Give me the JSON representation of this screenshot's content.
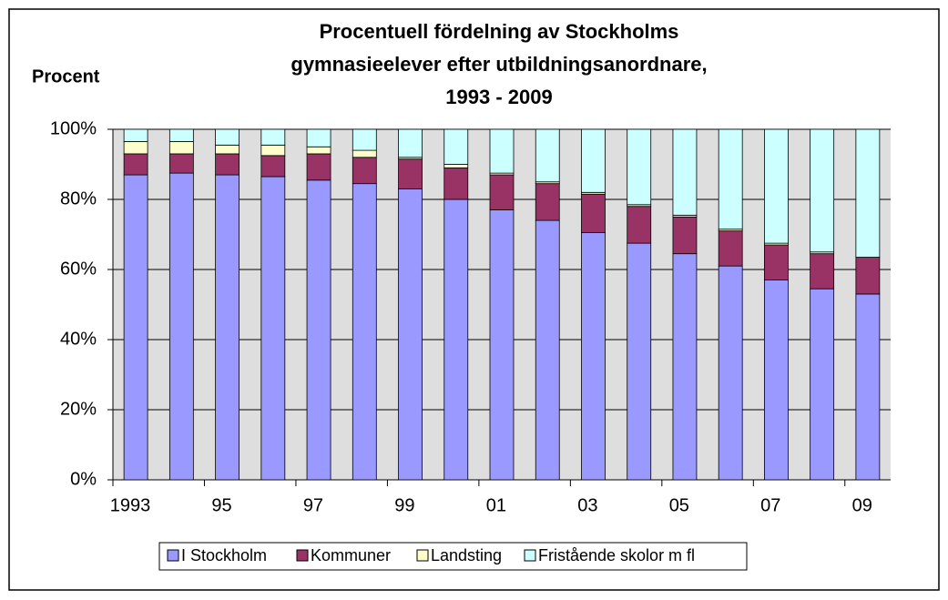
{
  "chart_data": {
    "type": "stacked_bar",
    "title": [
      "Procentuell fördelning av Stockholms",
      "gymnasieelever efter utbildningsanordnare,",
      "1993 - 2009"
    ],
    "y_label": "Procent",
    "categories": [
      "1993",
      null,
      "95",
      null,
      "97",
      null,
      "99",
      null,
      "01",
      null,
      "03",
      null,
      "05",
      null,
      "07",
      null,
      "09"
    ],
    "series": [
      {
        "name": "I Stockholm",
        "color": "#9999ff",
        "values": [
          87,
          87.5,
          87,
          86.5,
          85.5,
          84.5,
          83,
          80,
          77,
          74,
          70.5,
          67.5,
          64.5,
          61,
          57,
          54.5,
          53
        ]
      },
      {
        "name": "Kommuner",
        "color": "#993366",
        "values": [
          6,
          5.5,
          6,
          6,
          7.5,
          7.5,
          8.5,
          9,
          10,
          10.5,
          11,
          10.5,
          10.5,
          10,
          10,
          10,
          10.5
        ]
      },
      {
        "name": "Landsting",
        "color": "#ffffcc",
        "values": [
          3.5,
          3.5,
          2.5,
          3,
          2,
          2,
          0.5,
          1,
          0.5,
          0.5,
          0.5,
          0.5,
          0.5,
          0.5,
          0.5,
          0.5,
          0
        ]
      },
      {
        "name": "Fristående skolor m fl",
        "color": "#ccffff",
        "values": [
          3.5,
          3.5,
          4.5,
          4.5,
          5,
          6,
          8,
          10,
          12.5,
          15,
          18,
          21.5,
          24.5,
          28.5,
          32.5,
          35,
          36.5
        ]
      }
    ],
    "ylim": [
      0,
      100
    ],
    "yticks": [
      {
        "value": 0,
        "label": "0%"
      },
      {
        "value": 20,
        "label": "20%"
      },
      {
        "value": 40,
        "label": "40%"
      },
      {
        "value": 60,
        "label": "60%"
      },
      {
        "value": 80,
        "label": "80%"
      },
      {
        "value": 100,
        "label": "100%"
      }
    ],
    "grid": true,
    "legend": "bottom"
  }
}
